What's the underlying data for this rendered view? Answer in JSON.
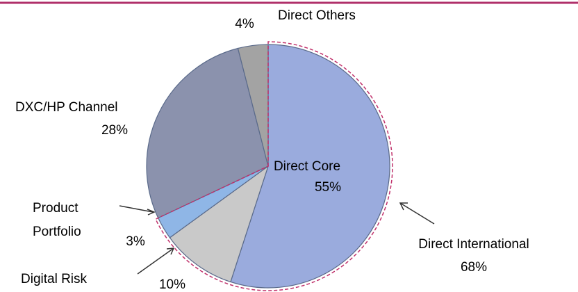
{
  "chart_data": {
    "type": "pie",
    "categories": [
      "Direct Core",
      "Digital Risk",
      "Product Portfolio",
      "DXC/HP Channel",
      "Direct Others"
    ],
    "values": [
      55,
      10,
      3,
      28,
      4
    ],
    "value_labels": [
      "55%",
      "10%",
      "3%",
      "28%",
      "4%"
    ],
    "colors": [
      "#9aabdd",
      "#c9c9c9",
      "#8fb6e6",
      "#8b92ad",
      "#a3a3a3"
    ],
    "annotations": [
      {
        "text": "Direct International",
        "value_label": "68%",
        "value": 68
      }
    ]
  }
}
